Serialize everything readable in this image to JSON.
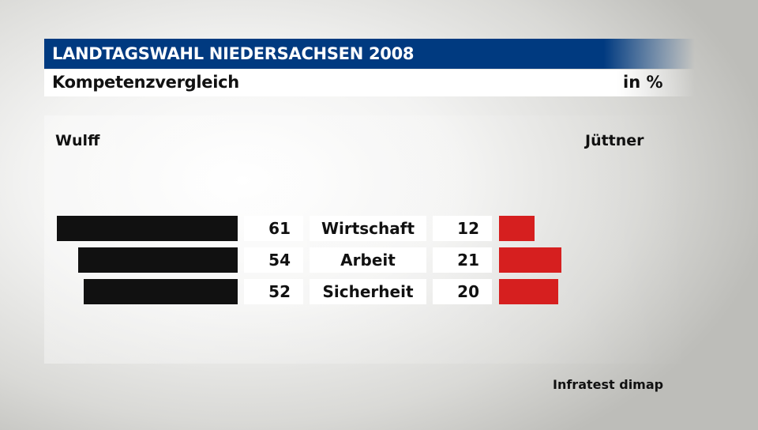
{
  "header": {
    "title": "LANDTAGSWAHL NIEDERSACHSEN 2008",
    "subtitle": "Kompetenzvergleich",
    "unit": "in %"
  },
  "labels": {
    "left": "Wulff",
    "right": "Jüttner"
  },
  "source": "Infratest dimap",
  "chart_data": {
    "type": "bar",
    "title": "Kompetenzvergleich",
    "categories": [
      "Wirtschaft",
      "Arbeit",
      "Sicherheit"
    ],
    "series": [
      {
        "name": "Wulff",
        "values": [
          61,
          54,
          52
        ],
        "color": "#111111"
      },
      {
        "name": "Jüttner",
        "values": [
          12,
          21,
          20
        ],
        "color": "#d61f1f"
      }
    ],
    "xlim": [
      0,
      61
    ]
  }
}
